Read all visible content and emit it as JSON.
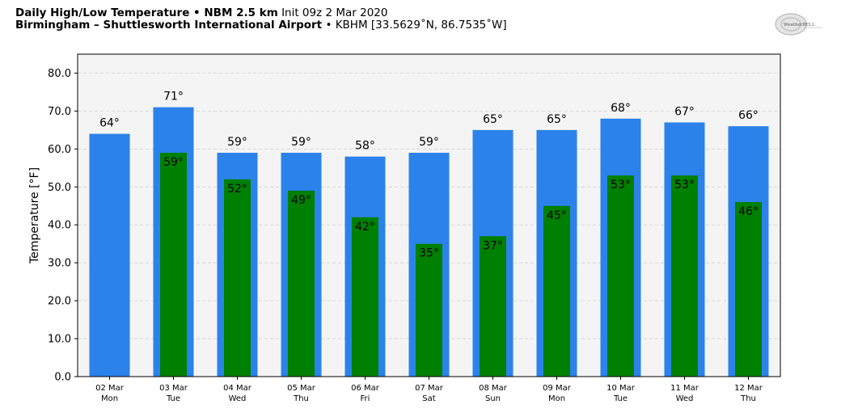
{
  "header": {
    "title_bold": "Daily High/Low Temperature • NBM 2.5 km",
    "title_init": "Init 09z 2 Mar 2020",
    "location_bold": "Birmingham – Shuttlesworth International Airport",
    "location_detail": "• KBHM [33.5629˚N, 86.7535˚W]"
  },
  "logo": {
    "text": "WeatherBELL",
    "icon": "weatherbell-logo"
  },
  "chart_data": {
    "type": "bar",
    "title": "Daily High/Low Temperature",
    "xlabel": "",
    "ylabel": "Temperature [°F]",
    "ylim": [
      0,
      85
    ],
    "yticks": [
      "0.0",
      "10.0",
      "20.0",
      "30.0",
      "40.0",
      "50.0",
      "60.0",
      "70.0",
      "80.0"
    ],
    "grid": true,
    "categories": [
      {
        "date": "02 Mar",
        "day": "Mon"
      },
      {
        "date": "03 Mar",
        "day": "Tue"
      },
      {
        "date": "04 Mar",
        "day": "Wed"
      },
      {
        "date": "05 Mar",
        "day": "Thu"
      },
      {
        "date": "06 Mar",
        "day": "Fri"
      },
      {
        "date": "07 Mar",
        "day": "Sat"
      },
      {
        "date": "08 Mar",
        "day": "Sun"
      },
      {
        "date": "09 Mar",
        "day": "Mon"
      },
      {
        "date": "10 Mar",
        "day": "Tue"
      },
      {
        "date": "11 Mar",
        "day": "Wed"
      },
      {
        "date": "12 Mar",
        "day": "Thu"
      }
    ],
    "series": [
      {
        "values": [
          64,
          71,
          59,
          59,
          58,
          59,
          65,
          65,
          68,
          67,
          66
        ],
        "labels": [
          "64°",
          "71°",
          "59°",
          "59°",
          "58°",
          "59°",
          "65°",
          "65°",
          "68°",
          "67°",
          "66°"
        ],
        "color": "#2b82ea"
      },
      {
        "values": [
          null,
          59,
          52,
          49,
          42,
          35,
          37,
          45,
          53,
          53,
          46
        ],
        "labels": [
          "",
          "59°",
          "52°",
          "49°",
          "42°",
          "35°",
          "37°",
          "45°",
          "53°",
          "53°",
          "46°"
        ],
        "color": "#008000"
      }
    ],
    "plot_background": "#f4f4f4"
  }
}
